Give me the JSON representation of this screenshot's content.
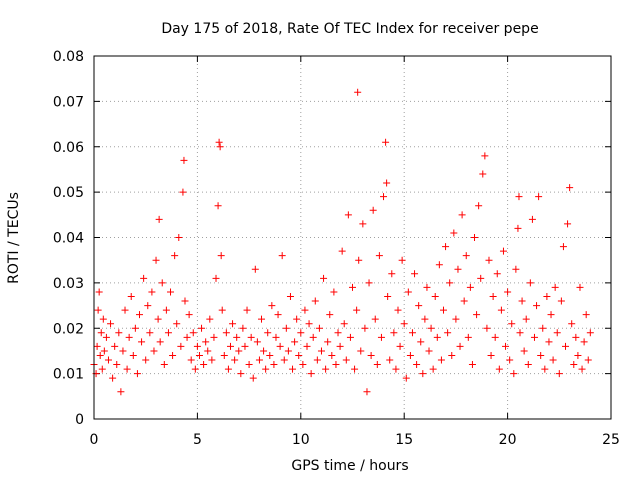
{
  "chart_data": {
    "type": "scatter",
    "title": "Day 175 of 2018, Rate Of TEC Index for receiver pepe",
    "xlabel": "GPS time / hours",
    "ylabel": "ROTI / TECUs",
    "xlim": [
      0,
      25
    ],
    "ylim": [
      0,
      0.08
    ],
    "xticks": [
      "0",
      "5",
      "10",
      "15",
      "20",
      "25"
    ],
    "yticks": [
      "0",
      "0.01",
      "0.02",
      "0.03",
      "0.04",
      "0.05",
      "0.06",
      "0.07",
      "0.08"
    ],
    "grid": true,
    "legend": "none",
    "marker": "+",
    "color": "#ff0000",
    "points": [
      [
        0.0,
        0.012
      ],
      [
        0.1,
        0.01
      ],
      [
        0.15,
        0.016
      ],
      [
        0.2,
        0.024
      ],
      [
        0.25,
        0.028
      ],
      [
        0.3,
        0.014
      ],
      [
        0.35,
        0.019
      ],
      [
        0.4,
        0.011
      ],
      [
        0.45,
        0.022
      ],
      [
        0.5,
        0.015
      ],
      [
        0.6,
        0.018
      ],
      [
        0.7,
        0.013
      ],
      [
        0.8,
        0.021
      ],
      [
        0.9,
        0.009
      ],
      [
        1.0,
        0.016
      ],
      [
        1.1,
        0.012
      ],
      [
        1.2,
        0.019
      ],
      [
        1.3,
        0.006
      ],
      [
        1.4,
        0.015
      ],
      [
        1.5,
        0.024
      ],
      [
        1.6,
        0.011
      ],
      [
        1.7,
        0.018
      ],
      [
        1.8,
        0.027
      ],
      [
        1.9,
        0.014
      ],
      [
        2.0,
        0.02
      ],
      [
        2.1,
        0.01
      ],
      [
        2.2,
        0.023
      ],
      [
        2.3,
        0.017
      ],
      [
        2.4,
        0.031
      ],
      [
        2.5,
        0.013
      ],
      [
        2.6,
        0.025
      ],
      [
        2.7,
        0.019
      ],
      [
        2.8,
        0.028
      ],
      [
        2.9,
        0.015
      ],
      [
        3.0,
        0.035
      ],
      [
        3.1,
        0.022
      ],
      [
        3.15,
        0.044
      ],
      [
        3.2,
        0.017
      ],
      [
        3.3,
        0.03
      ],
      [
        3.4,
        0.012
      ],
      [
        3.5,
        0.024
      ],
      [
        3.6,
        0.019
      ],
      [
        3.7,
        0.028
      ],
      [
        3.8,
        0.014
      ],
      [
        3.9,
        0.036
      ],
      [
        4.0,
        0.021
      ],
      [
        4.1,
        0.04
      ],
      [
        4.2,
        0.016
      ],
      [
        4.3,
        0.05
      ],
      [
        4.35,
        0.057
      ],
      [
        4.4,
        0.026
      ],
      [
        4.5,
        0.018
      ],
      [
        4.6,
        0.023
      ],
      [
        4.7,
        0.013
      ],
      [
        4.8,
        0.019
      ],
      [
        4.9,
        0.011
      ],
      [
        5.0,
        0.016
      ],
      [
        5.1,
        0.014
      ],
      [
        5.2,
        0.02
      ],
      [
        5.3,
        0.012
      ],
      [
        5.4,
        0.017
      ],
      [
        5.5,
        0.015
      ],
      [
        5.6,
        0.022
      ],
      [
        5.7,
        0.013
      ],
      [
        5.8,
        0.018
      ],
      [
        5.9,
        0.031
      ],
      [
        6.0,
        0.047
      ],
      [
        6.05,
        0.061
      ],
      [
        6.1,
        0.06
      ],
      [
        6.15,
        0.036
      ],
      [
        6.2,
        0.024
      ],
      [
        6.3,
        0.014
      ],
      [
        6.4,
        0.019
      ],
      [
        6.5,
        0.011
      ],
      [
        6.6,
        0.016
      ],
      [
        6.7,
        0.021
      ],
      [
        6.8,
        0.013
      ],
      [
        6.9,
        0.018
      ],
      [
        7.0,
        0.015
      ],
      [
        7.1,
        0.01
      ],
      [
        7.2,
        0.02
      ],
      [
        7.3,
        0.016
      ],
      [
        7.4,
        0.024
      ],
      [
        7.5,
        0.012
      ],
      [
        7.6,
        0.018
      ],
      [
        7.7,
        0.009
      ],
      [
        7.8,
        0.033
      ],
      [
        7.9,
        0.017
      ],
      [
        8.0,
        0.013
      ],
      [
        8.1,
        0.022
      ],
      [
        8.2,
        0.015
      ],
      [
        8.3,
        0.011
      ],
      [
        8.4,
        0.019
      ],
      [
        8.5,
        0.014
      ],
      [
        8.6,
        0.025
      ],
      [
        8.7,
        0.012
      ],
      [
        8.8,
        0.018
      ],
      [
        8.9,
        0.023
      ],
      [
        9.0,
        0.016
      ],
      [
        9.1,
        0.036
      ],
      [
        9.2,
        0.013
      ],
      [
        9.3,
        0.02
      ],
      [
        9.4,
        0.015
      ],
      [
        9.5,
        0.027
      ],
      [
        9.6,
        0.011
      ],
      [
        9.7,
        0.017
      ],
      [
        9.8,
        0.022
      ],
      [
        9.9,
        0.014
      ],
      [
        10.0,
        0.019
      ],
      [
        10.1,
        0.012
      ],
      [
        10.2,
        0.024
      ],
      [
        10.3,
        0.016
      ],
      [
        10.4,
        0.021
      ],
      [
        10.5,
        0.01
      ],
      [
        10.6,
        0.018
      ],
      [
        10.7,
        0.026
      ],
      [
        10.8,
        0.013
      ],
      [
        10.9,
        0.02
      ],
      [
        11.0,
        0.015
      ],
      [
        11.1,
        0.031
      ],
      [
        11.2,
        0.011
      ],
      [
        11.3,
        0.017
      ],
      [
        11.4,
        0.023
      ],
      [
        11.5,
        0.014
      ],
      [
        11.6,
        0.028
      ],
      [
        11.7,
        0.012
      ],
      [
        11.8,
        0.019
      ],
      [
        11.9,
        0.016
      ],
      [
        12.0,
        0.037
      ],
      [
        12.1,
        0.021
      ],
      [
        12.2,
        0.013
      ],
      [
        12.3,
        0.045
      ],
      [
        12.4,
        0.018
      ],
      [
        12.5,
        0.029
      ],
      [
        12.6,
        0.011
      ],
      [
        12.7,
        0.024
      ],
      [
        12.75,
        0.072
      ],
      [
        12.8,
        0.035
      ],
      [
        12.9,
        0.015
      ],
      [
        13.0,
        0.043
      ],
      [
        13.1,
        0.02
      ],
      [
        13.2,
        0.006
      ],
      [
        13.3,
        0.03
      ],
      [
        13.4,
        0.014
      ],
      [
        13.5,
        0.046
      ],
      [
        13.6,
        0.022
      ],
      [
        13.7,
        0.012
      ],
      [
        13.8,
        0.036
      ],
      [
        13.9,
        0.018
      ],
      [
        14.0,
        0.049
      ],
      [
        14.1,
        0.061
      ],
      [
        14.15,
        0.052
      ],
      [
        14.2,
        0.027
      ],
      [
        14.3,
        0.013
      ],
      [
        14.4,
        0.032
      ],
      [
        14.5,
        0.019
      ],
      [
        14.6,
        0.011
      ],
      [
        14.7,
        0.024
      ],
      [
        14.8,
        0.016
      ],
      [
        14.9,
        0.035
      ],
      [
        15.0,
        0.021
      ],
      [
        15.1,
        0.009
      ],
      [
        15.2,
        0.028
      ],
      [
        15.3,
        0.014
      ],
      [
        15.4,
        0.019
      ],
      [
        15.5,
        0.032
      ],
      [
        15.6,
        0.012
      ],
      [
        15.7,
        0.025
      ],
      [
        15.8,
        0.017
      ],
      [
        15.9,
        0.01
      ],
      [
        16.0,
        0.022
      ],
      [
        16.1,
        0.029
      ],
      [
        16.2,
        0.015
      ],
      [
        16.3,
        0.02
      ],
      [
        16.4,
        0.011
      ],
      [
        16.5,
        0.027
      ],
      [
        16.6,
        0.018
      ],
      [
        16.7,
        0.034
      ],
      [
        16.8,
        0.013
      ],
      [
        16.9,
        0.024
      ],
      [
        17.0,
        0.038
      ],
      [
        17.1,
        0.019
      ],
      [
        17.2,
        0.03
      ],
      [
        17.3,
        0.014
      ],
      [
        17.4,
        0.041
      ],
      [
        17.5,
        0.022
      ],
      [
        17.6,
        0.033
      ],
      [
        17.7,
        0.016
      ],
      [
        17.8,
        0.045
      ],
      [
        17.9,
        0.026
      ],
      [
        18.0,
        0.036
      ],
      [
        18.1,
        0.018
      ],
      [
        18.2,
        0.029
      ],
      [
        18.3,
        0.012
      ],
      [
        18.4,
        0.04
      ],
      [
        18.5,
        0.023
      ],
      [
        18.6,
        0.047
      ],
      [
        18.7,
        0.031
      ],
      [
        18.8,
        0.054
      ],
      [
        18.9,
        0.058
      ],
      [
        19.0,
        0.02
      ],
      [
        19.1,
        0.035
      ],
      [
        19.2,
        0.014
      ],
      [
        19.3,
        0.027
      ],
      [
        19.4,
        0.018
      ],
      [
        19.5,
        0.032
      ],
      [
        19.6,
        0.011
      ],
      [
        19.7,
        0.024
      ],
      [
        19.8,
        0.037
      ],
      [
        19.9,
        0.016
      ],
      [
        20.0,
        0.028
      ],
      [
        20.1,
        0.013
      ],
      [
        20.2,
        0.021
      ],
      [
        20.3,
        0.01
      ],
      [
        20.4,
        0.033
      ],
      [
        20.5,
        0.042
      ],
      [
        20.55,
        0.049
      ],
      [
        20.6,
        0.019
      ],
      [
        20.7,
        0.026
      ],
      [
        20.8,
        0.015
      ],
      [
        20.9,
        0.022
      ],
      [
        21.0,
        0.012
      ],
      [
        21.1,
        0.03
      ],
      [
        21.2,
        0.044
      ],
      [
        21.3,
        0.018
      ],
      [
        21.4,
        0.025
      ],
      [
        21.5,
        0.049
      ],
      [
        21.6,
        0.014
      ],
      [
        21.7,
        0.02
      ],
      [
        21.8,
        0.011
      ],
      [
        21.9,
        0.027
      ],
      [
        22.0,
        0.017
      ],
      [
        22.1,
        0.023
      ],
      [
        22.2,
        0.013
      ],
      [
        22.3,
        0.029
      ],
      [
        22.4,
        0.019
      ],
      [
        22.5,
        0.01
      ],
      [
        22.6,
        0.026
      ],
      [
        22.7,
        0.038
      ],
      [
        22.8,
        0.016
      ],
      [
        22.9,
        0.043
      ],
      [
        23.0,
        0.051
      ],
      [
        23.1,
        0.021
      ],
      [
        23.2,
        0.012
      ],
      [
        23.3,
        0.018
      ],
      [
        23.4,
        0.014
      ],
      [
        23.5,
        0.029
      ],
      [
        23.6,
        0.011
      ],
      [
        23.7,
        0.017
      ],
      [
        23.8,
        0.023
      ],
      [
        23.9,
        0.013
      ],
      [
        24.0,
        0.019
      ]
    ]
  }
}
